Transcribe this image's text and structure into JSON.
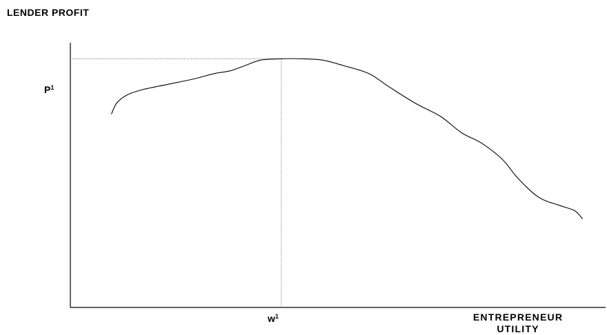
{
  "chart_data": {
    "type": "line",
    "title": "",
    "ylabel": "LENDER PROFIT",
    "xlabel": {
      "line1": "ENTREPRENEUR",
      "line2": "UTILITY"
    },
    "peak": {
      "y_label": {
        "letter": "P",
        "superscript": "1"
      },
      "x_label": {
        "letter": "w",
        "superscript": "1"
      }
    },
    "axis_ticks_numeric": false,
    "grid": false,
    "legend": "none",
    "series": [
      {
        "style": "smooth",
        "color": "#000000",
        "points": [
          [
            0.08,
            0.72
          ],
          [
            0.09,
            0.76
          ],
          [
            0.11,
            0.79
          ],
          [
            0.14,
            0.81
          ],
          [
            0.19,
            0.83
          ],
          [
            0.24,
            0.85
          ],
          [
            0.28,
            0.87
          ],
          [
            0.31,
            0.88
          ],
          [
            0.34,
            0.9
          ],
          [
            0.37,
            0.92
          ],
          [
            0.41,
            0.925
          ],
          [
            0.45,
            0.925
          ],
          [
            0.49,
            0.92
          ],
          [
            0.53,
            0.9
          ],
          [
            0.58,
            0.87
          ],
          [
            0.62,
            0.82
          ],
          [
            0.67,
            0.76
          ],
          [
            0.72,
            0.71
          ],
          [
            0.76,
            0.65
          ],
          [
            0.8,
            0.61
          ],
          [
            0.84,
            0.55
          ],
          [
            0.87,
            0.48
          ],
          [
            0.91,
            0.41
          ],
          [
            0.95,
            0.38
          ],
          [
            0.98,
            0.36
          ],
          [
            0.995,
            0.33
          ]
        ]
      }
    ],
    "guides": {
      "style": "dotted",
      "color": "#555555",
      "peak_x": 0.41,
      "peak_y": 0.925
    }
  }
}
